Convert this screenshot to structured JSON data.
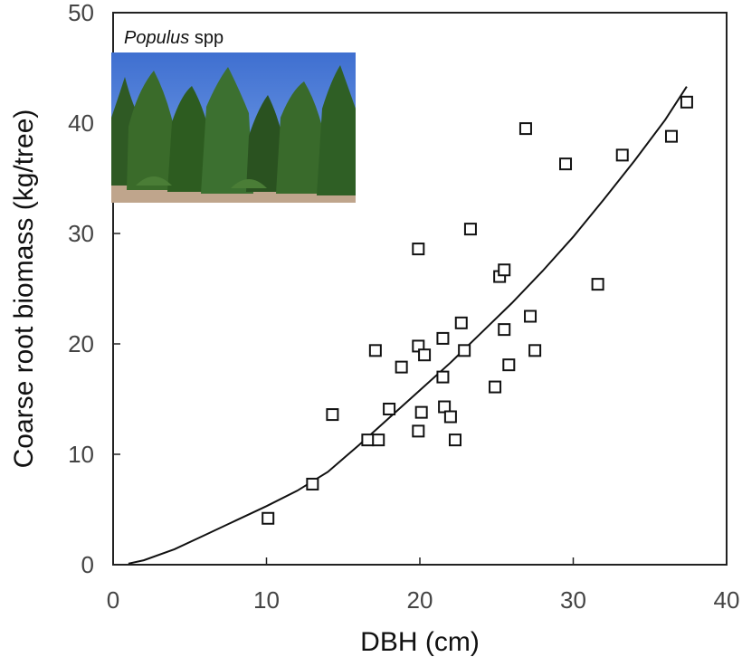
{
  "chart_data": {
    "type": "scatter",
    "xlabel": "DBH (cm)",
    "ylabel": "Coarse root biomass (kg/tree)",
    "xlim": [
      0,
      40
    ],
    "ylim": [
      0,
      50
    ],
    "xticks": [
      0,
      10,
      20,
      30,
      40
    ],
    "yticks": [
      0,
      10,
      20,
      30,
      40,
      50
    ],
    "grid": false,
    "marker": "open-square",
    "inset": {
      "caption_italic": "Populus",
      "caption_rest": " spp",
      "image": "poplar-stand-photo"
    },
    "points": [
      {
        "x": 10.1,
        "y": 4.2
      },
      {
        "x": 13.0,
        "y": 7.3
      },
      {
        "x": 14.3,
        "y": 13.6
      },
      {
        "x": 16.6,
        "y": 11.3
      },
      {
        "x": 17.1,
        "y": 19.4
      },
      {
        "x": 17.3,
        "y": 11.3
      },
      {
        "x": 18.0,
        "y": 14.1
      },
      {
        "x": 18.8,
        "y": 17.9
      },
      {
        "x": 19.9,
        "y": 19.8
      },
      {
        "x": 19.9,
        "y": 12.1
      },
      {
        "x": 19.9,
        "y": 28.6
      },
      {
        "x": 20.1,
        "y": 13.8
      },
      {
        "x": 20.3,
        "y": 19.0
      },
      {
        "x": 21.5,
        "y": 20.5
      },
      {
        "x": 21.5,
        "y": 17.0
      },
      {
        "x": 21.6,
        "y": 14.3
      },
      {
        "x": 22.0,
        "y": 13.4
      },
      {
        "x": 22.3,
        "y": 11.3
      },
      {
        "x": 22.7,
        "y": 21.9
      },
      {
        "x": 22.9,
        "y": 19.4
      },
      {
        "x": 23.3,
        "y": 30.4
      },
      {
        "x": 24.9,
        "y": 16.1
      },
      {
        "x": 25.2,
        "y": 26.1
      },
      {
        "x": 25.5,
        "y": 26.7
      },
      {
        "x": 25.5,
        "y": 21.3
      },
      {
        "x": 25.8,
        "y": 18.1
      },
      {
        "x": 26.9,
        "y": 39.5
      },
      {
        "x": 27.2,
        "y": 22.5
      },
      {
        "x": 27.5,
        "y": 19.4
      },
      {
        "x": 29.5,
        "y": 36.3
      },
      {
        "x": 31.6,
        "y": 25.4
      },
      {
        "x": 33.2,
        "y": 37.1
      },
      {
        "x": 36.4,
        "y": 38.8
      },
      {
        "x": 37.4,
        "y": 41.9
      }
    ],
    "fit_curve": {
      "x": [
        1,
        2,
        4,
        6,
        8,
        10,
        12,
        14,
        16,
        18,
        20,
        22,
        24,
        26,
        28,
        30,
        32,
        34,
        36,
        37.4
      ],
      "y": [
        0.1,
        0.4,
        1.4,
        2.7,
        4.0,
        5.3,
        6.7,
        8.4,
        10.8,
        13.3,
        15.8,
        18.3,
        21.0,
        23.7,
        26.6,
        29.7,
        33.1,
        36.6,
        40.3,
        43.3
      ]
    }
  }
}
